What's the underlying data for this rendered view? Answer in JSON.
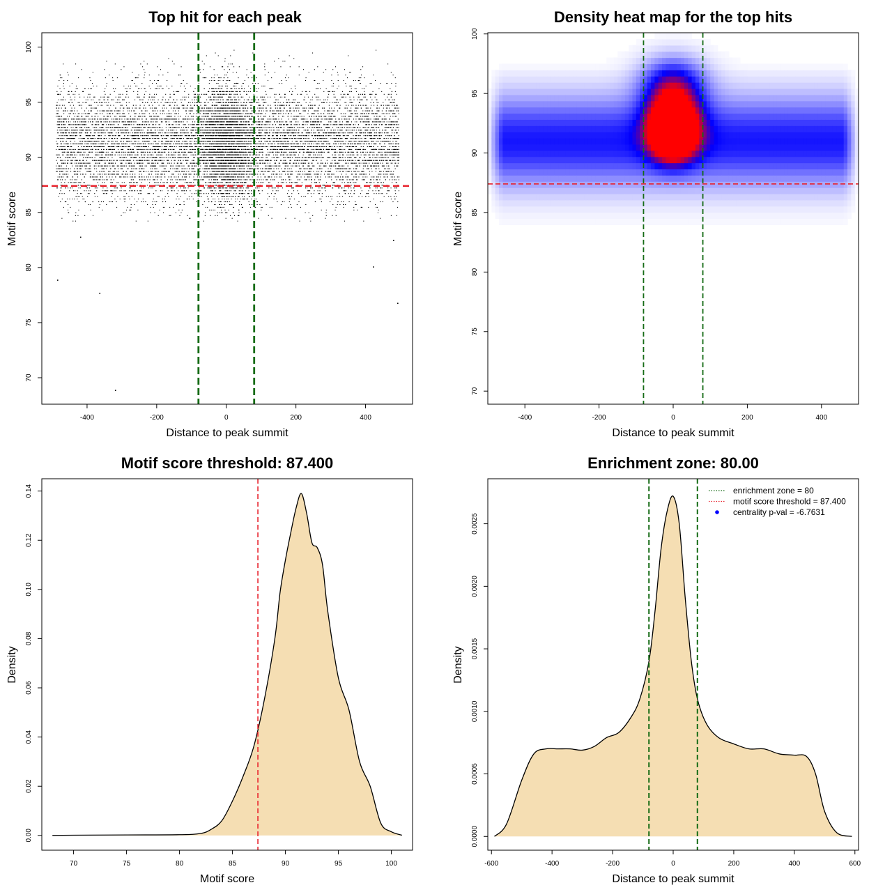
{
  "colors": {
    "threshold": "#e8212b",
    "zone": "#156b15",
    "density_fill": "#f5deb3",
    "point": "#000000",
    "heat_low": "#ffffff",
    "heat_mid": "#0000ff",
    "heat_high": "#ff0000",
    "centrality_marker": "#0000ff"
  },
  "chart_data": [
    {
      "type": "scatter",
      "title": "Top hit for each peak",
      "xlabel": "Distance to peak summit",
      "ylabel": "Motif score",
      "xlim": [
        -530,
        535
      ],
      "ylim": [
        67.6,
        101.3
      ],
      "xticks": [
        -400,
        -200,
        0,
        200,
        400
      ],
      "yticks": [
        70,
        75,
        80,
        85,
        90,
        95,
        100
      ],
      "xtick_labels": [
        "-400",
        "-200",
        "0",
        "200",
        "400"
      ],
      "ytick_labels": [
        "70",
        "75",
        "80",
        "85",
        "90",
        "95",
        "100"
      ],
      "threshold": 87.4,
      "zone": [
        -80,
        80
      ],
      "n_points_approx": 12000,
      "x_range": [
        -490,
        495
      ],
      "y_range": [
        84.2,
        100
      ],
      "outliers": [
        {
          "x": -486,
          "y": 78.9
        },
        {
          "x": -365,
          "y": 77.7
        },
        {
          "x": -320,
          "y": 68.9
        },
        {
          "x": 421,
          "y": 80.1
        },
        {
          "x": 491,
          "y": 76.8
        },
        {
          "x": 479,
          "y": 82.5
        },
        {
          "x": -420,
          "y": 82.8
        }
      ],
      "grid": false
    },
    {
      "type": "heatmap",
      "title": "Density heat map for the top hits",
      "xlabel": "Distance to peak summit",
      "ylabel": "Motif score",
      "xlim": [
        -500,
        500
      ],
      "ylim": [
        68.9,
        100.1
      ],
      "xticks": [
        -400,
        -200,
        0,
        200,
        400
      ],
      "yticks": [
        70,
        75,
        80,
        85,
        90,
        95,
        100
      ],
      "xtick_labels": [
        "-400",
        "-200",
        "0",
        "200",
        "400"
      ],
      "ytick_labels": [
        "70",
        "75",
        "80",
        "85",
        "90",
        "95",
        "100"
      ],
      "threshold": 87.4,
      "zone": [
        -80,
        80
      ],
      "hotspot": {
        "x": 0,
        "y": 92.5
      },
      "grid": false
    },
    {
      "type": "area",
      "title": "Motif score threshold: 87.400",
      "xlabel": "Motif score",
      "ylabel": "Density",
      "xlim": [
        67,
        102
      ],
      "ylim": [
        -0.006,
        0.145
      ],
      "xticks": [
        70,
        75,
        80,
        85,
        90,
        95,
        100
      ],
      "yticks": [
        0,
        0.02,
        0.04,
        0.06,
        0.08,
        0.1,
        0.12,
        0.14
      ],
      "xtick_labels": [
        "70",
        "75",
        "80",
        "85",
        "90",
        "95",
        "100"
      ],
      "ytick_labels": [
        "0.00",
        "0.02",
        "0.04",
        "0.06",
        "0.08",
        "0.10",
        "0.12",
        "0.14"
      ],
      "threshold": 87.4,
      "x": [
        68,
        70,
        75,
        80,
        82,
        83,
        84,
        85,
        86,
        87,
        88,
        89,
        89.5,
        90,
        90.5,
        91,
        91.5,
        92,
        92.5,
        93,
        93.5,
        94,
        95,
        96,
        97,
        98,
        99,
        100,
        101
      ],
      "y": [
        0,
        0.0001,
        0.0002,
        0.0003,
        0.0008,
        0.0025,
        0.006,
        0.014,
        0.024,
        0.036,
        0.055,
        0.08,
        0.099,
        0.112,
        0.123,
        0.133,
        0.139,
        0.131,
        0.119,
        0.117,
        0.11,
        0.091,
        0.064,
        0.051,
        0.03,
        0.02,
        0.005,
        0.0015,
        0.0001
      ],
      "grid": false
    },
    {
      "type": "area",
      "title": "Enrichment zone: 80.00",
      "xlabel": "Distance to peak summit",
      "ylabel": "Density",
      "xlim": [
        -612,
        612
      ],
      "ylim": [
        -0.00011,
        0.00286
      ],
      "xticks": [
        -600,
        -400,
        -200,
        0,
        200,
        400,
        600
      ],
      "yticks": [
        0,
        0.0005,
        0.001,
        0.0015,
        0.002,
        0.0025
      ],
      "xtick_labels": [
        "-600",
        "-400",
        "-200",
        "0",
        "200",
        "400",
        "600"
      ],
      "ytick_labels": [
        "0.0000",
        "0.0005",
        "0.0010",
        "0.0015",
        "0.0020",
        "0.0025"
      ],
      "zone": [
        -80,
        80
      ],
      "x": [
        -590,
        -550,
        -500,
        -460,
        -420,
        -380,
        -340,
        -300,
        -260,
        -220,
        -180,
        -140,
        -110,
        -80,
        -60,
        -40,
        -20,
        0,
        20,
        40,
        60,
        80,
        110,
        150,
        200,
        250,
        300,
        350,
        400,
        440,
        470,
        500,
        540,
        590
      ],
      "y": [
        0,
        0.0001,
        0.00045,
        0.00066,
        0.0007,
        0.0007,
        0.0007,
        0.00069,
        0.00072,
        0.00079,
        0.00083,
        0.00095,
        0.0011,
        0.0014,
        0.0018,
        0.0023,
        0.0026,
        0.00272,
        0.0025,
        0.0019,
        0.0014,
        0.0011,
        0.0009,
        0.00079,
        0.00074,
        0.0007,
        0.0007,
        0.00066,
        0.00065,
        0.00064,
        0.0005,
        0.0002,
        3e-05,
        0
      ],
      "legend": {
        "placement": "top-right",
        "entries": [
          {
            "label": "enrichment zone = 80",
            "style": "dotted-line",
            "color": "#156b15"
          },
          {
            "label": "motif score threshold = 87.400",
            "style": "dotted-line",
            "color": "#e8212b"
          },
          {
            "label": "centrality p-val = -6.7631",
            "style": "point",
            "color": "#0000ff"
          }
        ]
      },
      "grid": false
    }
  ]
}
